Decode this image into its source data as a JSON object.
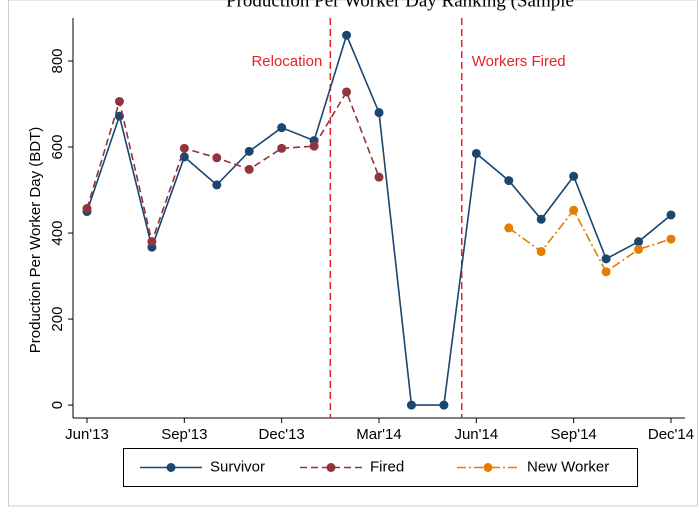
{
  "chart_data": {
    "type": "line",
    "title": "Production Per Worker Day Ranking (Sample",
    "y_label": "Production Per Worker Day (BDT)",
    "categories": [
      "Jun'13",
      null,
      null,
      "Sep'13",
      null,
      null,
      "Dec'13",
      null,
      null,
      "Mar'14",
      null,
      null,
      "Jun'14",
      null,
      null,
      "Sep'14",
      null,
      null,
      "Dec'14"
    ],
    "series": [
      {
        "name": "Survivor",
        "color": "#1a476f",
        "dash": "none",
        "values": [
          450,
          672,
          367,
          577,
          512,
          590,
          645,
          615,
          860,
          680,
          0,
          0,
          585,
          522,
          432,
          532,
          340,
          380,
          442
        ]
      },
      {
        "name": "Fired",
        "color": "#90353b",
        "dash": "7,4",
        "values": [
          457,
          706,
          380,
          597,
          575,
          548,
          597,
          602,
          728,
          530,
          null,
          null,
          null,
          null,
          null,
          null,
          null,
          null,
          null
        ]
      },
      {
        "name": "New Worker",
        "color": "#e37e00",
        "dash": "9,3,2,3",
        "values": [
          null,
          null,
          null,
          null,
          null,
          null,
          null,
          null,
          null,
          null,
          null,
          null,
          null,
          412,
          357,
          453,
          310,
          362,
          386
        ]
      }
    ],
    "annotations": [
      {
        "x": 7.5,
        "label": "Relocation"
      },
      {
        "x": 11.55,
        "label": "Workers Fired"
      }
    ],
    "annotation_color": "#e8202a",
    "ylim": [
      -30,
      900
    ],
    "yticks": [
      0,
      200,
      400,
      600,
      800
    ]
  }
}
